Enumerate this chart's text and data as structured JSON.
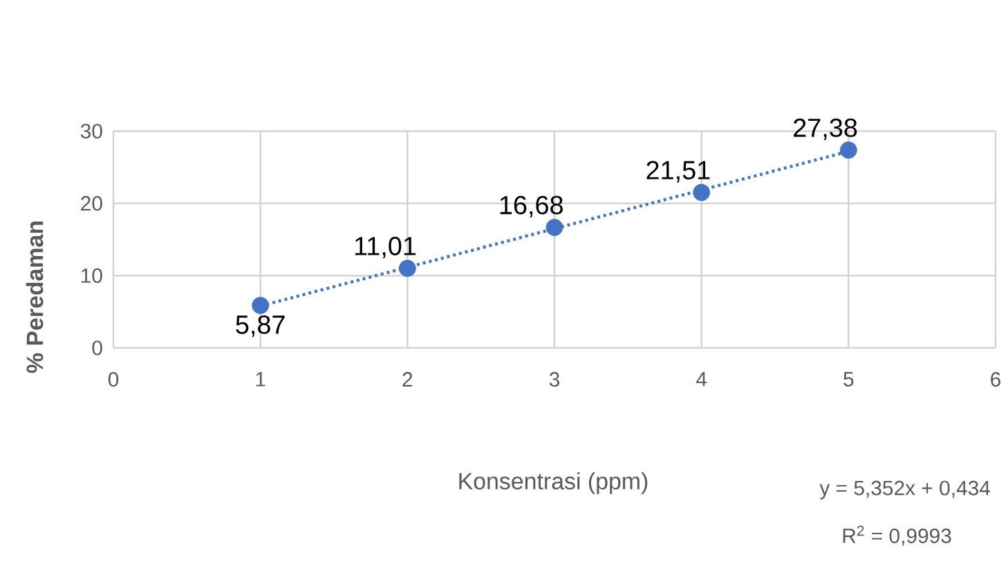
{
  "chart_data": {
    "type": "scatter",
    "xlabel": "Konsentrasi (ppm)",
    "ylabel": "% Peredaman",
    "x": [
      1,
      2,
      3,
      4,
      5
    ],
    "series": [
      {
        "color": "#4472c4",
        "marker": "circle",
        "values": [
          5.87,
          11.01,
          16.68,
          21.51,
          27.38
        ],
        "value_labels": [
          "5,87",
          "11,01",
          "16,68",
          "21,51",
          "27,38"
        ]
      },
      {
        "type": "line",
        "color": "#4472c4",
        "line_style": "dotted",
        "x": [
          1,
          5
        ],
        "values": [
          5.8,
          27.2
        ]
      }
    ],
    "xlim": [
      0,
      6
    ],
    "xticks": [
      0,
      1,
      2,
      3,
      4,
      5,
      6
    ],
    "ylim": [
      0,
      30
    ],
    "yticks": [
      0,
      10,
      20,
      30
    ],
    "grid": true,
    "annotations": [
      "y = 5,352x + 0,434",
      "R$^{2}$ = 0,9993"
    ]
  }
}
